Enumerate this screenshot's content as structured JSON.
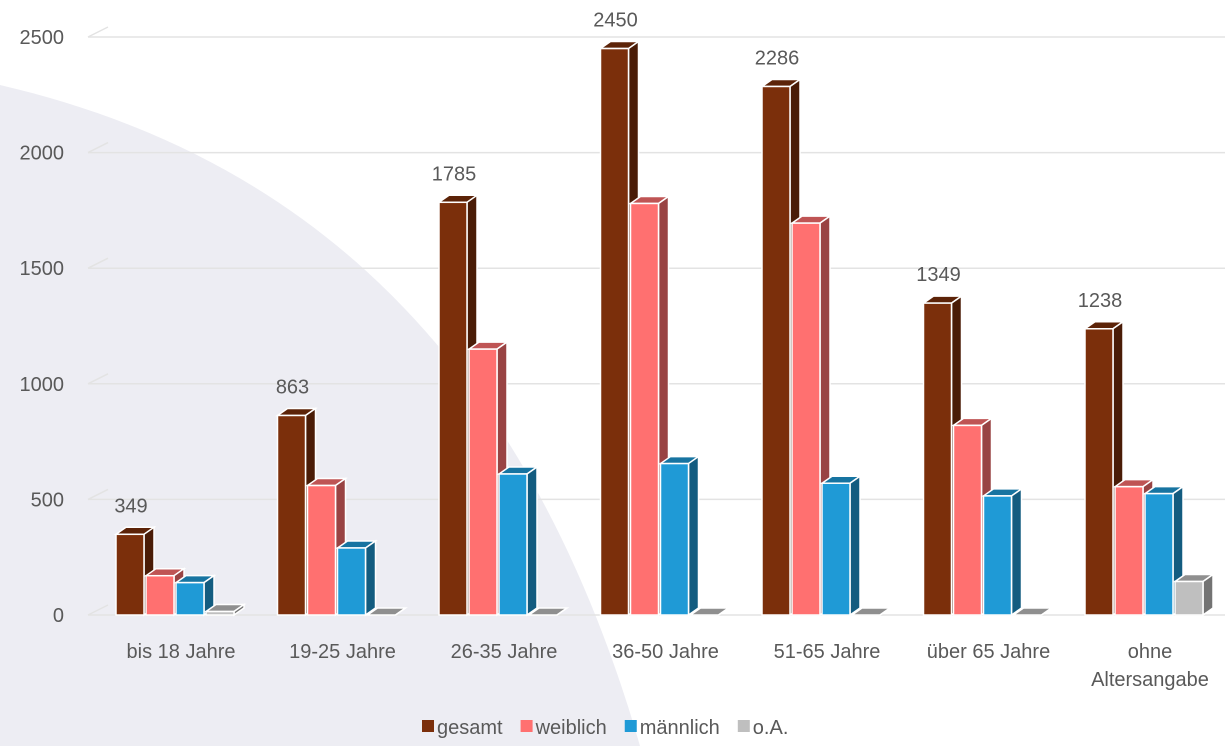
{
  "chart_data": {
    "type": "bar",
    "title": "",
    "xlabel": "",
    "ylabel": "",
    "ylim": [
      0,
      2500
    ],
    "yticks": [
      0,
      500,
      1000,
      1500,
      2000,
      2500
    ],
    "grid": true,
    "legend_position": "bottom",
    "categories": [
      [
        "bis 18 Jahre"
      ],
      [
        "19-25 Jahre"
      ],
      [
        "26-35 Jahre"
      ],
      [
        "36-50 Jahre"
      ],
      [
        "51-65 Jahre"
      ],
      [
        "über 65 Jahre"
      ],
      [
        "ohne",
        "Altersangabe"
      ]
    ],
    "series": [
      {
        "name": "gesamt",
        "color": "#7B2F0B",
        "values": [
          349,
          863,
          1785,
          2450,
          2286,
          1349,
          1238
        ]
      },
      {
        "name": "weiblich",
        "color": "#FF7070",
        "values": [
          170,
          560,
          1150,
          1780,
          1695,
          820,
          555
        ]
      },
      {
        "name": "männlich",
        "color": "#1F9AD6",
        "values": [
          140,
          290,
          610,
          655,
          570,
          515,
          525
        ]
      },
      {
        "name": "o.A.",
        "color": "#BFBFBF",
        "values": [
          15,
          0,
          0,
          0,
          0,
          0,
          145
        ]
      }
    ],
    "data_labels": {
      "series": "gesamt",
      "values": [
        349,
        863,
        1785,
        2450,
        2286,
        1349,
        1238
      ]
    }
  }
}
